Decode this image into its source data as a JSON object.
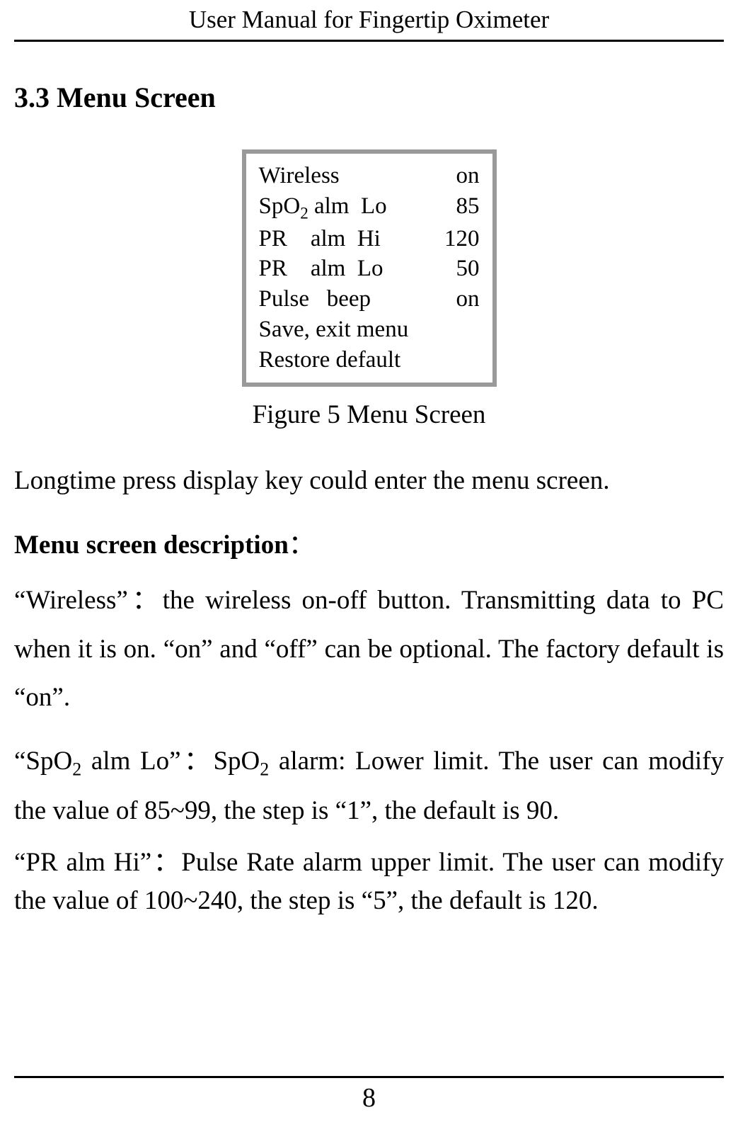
{
  "header": {
    "title": "User Manual for Fingertip Oximeter"
  },
  "section": {
    "heading": "3.3 Menu Screen"
  },
  "figure": {
    "caption": "Figure 5 Menu Screen",
    "menu": {
      "rows": [
        {
          "label": "Wireless",
          "value": "on"
        },
        {
          "label_html": "SpO<sub>2</sub> alm&nbsp;&nbsp;Lo",
          "value": "85"
        },
        {
          "label": "PR    alm  Hi",
          "value": "120"
        },
        {
          "label": "PR    alm  Lo",
          "value": "50"
        },
        {
          "label": "Pulse   beep",
          "value": "on"
        }
      ],
      "single_lines": [
        "Save, exit menu",
        "Restore default"
      ]
    }
  },
  "body": {
    "intro": "Longtime press display key could enter the menu screen.",
    "subheading": "Menu screen description",
    "subheading_colon": "：",
    "para1_html": "“Wireless”：the wireless on-off button. Transmitting data to PC when it is on. “on” and “off” can be optional. The factory default is “on”.",
    "para2_html": "“SpO<sub>2</sub> alm Lo”：SpO<sub>2</sub> alarm: Lower limit. The user can modify the value of 85~99, the step is “1”, the default is 90.",
    "para3_html": "“PR alm Hi”：Pulse Rate alarm upper limit. The user can modify the value of 100~240, the step is “5”, the default is 120."
  },
  "footer": {
    "page_number": "8"
  }
}
